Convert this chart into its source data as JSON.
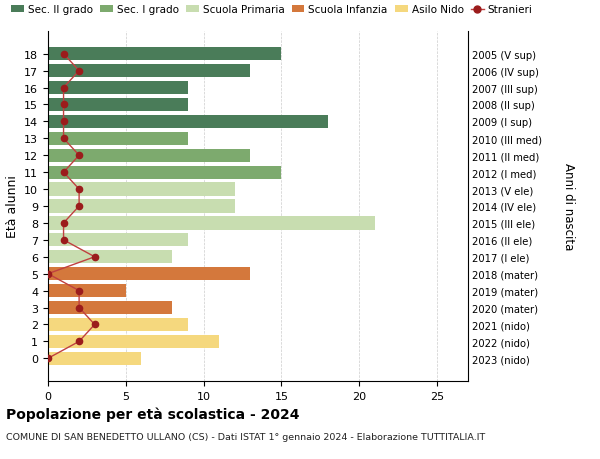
{
  "ages": [
    18,
    17,
    16,
    15,
    14,
    13,
    12,
    11,
    10,
    9,
    8,
    7,
    6,
    5,
    4,
    3,
    2,
    1,
    0
  ],
  "bar_values": [
    15,
    13,
    9,
    9,
    18,
    9,
    13,
    15,
    12,
    12,
    21,
    9,
    8,
    13,
    5,
    8,
    9,
    11,
    6
  ],
  "bar_colors": [
    "#4a7c59",
    "#4a7c59",
    "#4a7c59",
    "#4a7c59",
    "#4a7c59",
    "#7daa6e",
    "#7daa6e",
    "#7daa6e",
    "#c8ddb0",
    "#c8ddb0",
    "#c8ddb0",
    "#c8ddb0",
    "#c8ddb0",
    "#d4783c",
    "#d4783c",
    "#d4783c",
    "#f5d87e",
    "#f5d87e",
    "#f5d87e"
  ],
  "stranieri": [
    1,
    2,
    1,
    1,
    1,
    1,
    2,
    1,
    2,
    2,
    1,
    1,
    3,
    0,
    2,
    2,
    3,
    2,
    0
  ],
  "right_labels": [
    "2005 (V sup)",
    "2006 (IV sup)",
    "2007 (III sup)",
    "2008 (II sup)",
    "2009 (I sup)",
    "2010 (III med)",
    "2011 (II med)",
    "2012 (I med)",
    "2013 (V ele)",
    "2014 (IV ele)",
    "2015 (III ele)",
    "2016 (II ele)",
    "2017 (I ele)",
    "2018 (mater)",
    "2019 (mater)",
    "2020 (mater)",
    "2021 (nido)",
    "2022 (nido)",
    "2023 (nido)"
  ],
  "legend_labels": [
    "Sec. II grado",
    "Sec. I grado",
    "Scuola Primaria",
    "Scuola Infanzia",
    "Asilo Nido",
    "Stranieri"
  ],
  "bar_color_dark_green": "#4a7c59",
  "bar_color_med_green": "#7daa6e",
  "bar_color_light_green": "#c8ddb0",
  "bar_color_orange": "#d4783c",
  "bar_color_yellow": "#f5d87e",
  "stranieri_dot_color": "#9b1c1c",
  "stranieri_line_color": "#c04040",
  "ylabel": "Età alunni",
  "right_ylabel": "Anni di nascita",
  "title": "Popolazione per età scolastica - 2024",
  "subtitle": "COMUNE DI SAN BENEDETTO ULLANO (CS) - Dati ISTAT 1° gennaio 2024 - Elaborazione TUTTITALIA.IT",
  "xlim": [
    0,
    27
  ],
  "xticks": [
    0,
    5,
    10,
    15,
    20,
    25
  ],
  "bg_color": "#ffffff",
  "grid_color": "#cccccc"
}
